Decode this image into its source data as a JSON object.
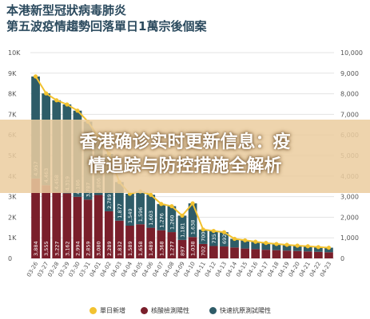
{
  "title_line1": "本港新型冠狀病毒肺炎",
  "title_line2": "第五波疫情趨勢回落單日1萬宗後個案",
  "overlay_line1": "香港确诊实时更新信息：疫",
  "overlay_line2": "情追踪与防控措施全解析",
  "colors": {
    "pcr": "#7a1f2b",
    "rat": "#2e5c68",
    "line": "#f2c230",
    "grid": "#e3e3e3",
    "label": "#ffffff",
    "axis": "#555555"
  },
  "chart_data": {
    "type": "bar",
    "stacked": true,
    "categories": [
      "03-26",
      "03-27",
      "03-28",
      "03-29",
      "03-30",
      "03-31",
      "04-01",
      "04-02",
      "04-03",
      "04-04",
      "04-05",
      "04-06",
      "04-07",
      "04-08",
      "04-09",
      "04-10",
      "04-11",
      "04-12",
      "04-13",
      "04-14",
      "04-15",
      "04-16",
      "04-17",
      "04-18",
      "04-19",
      "04-20",
      "04-21",
      "04-22",
      "04-23"
    ],
    "x_tick_labels": [
      "03-26",
      "03-27",
      "03-28",
      "03-29",
      "03-30",
      "03-31",
      "04-01",
      "04-02",
      "04-03",
      "04-04",
      "04-05",
      "04-06",
      "04-07",
      "04-08",
      "04-09",
      "04-10",
      "04-11",
      "04-12",
      "04-13",
      "04-14",
      "04-15",
      "04-16",
      "04-17",
      "04-18",
      "04-19",
      "04-20",
      "04-21",
      "04-22",
      "04-23"
    ],
    "series": [
      {
        "name": "核酸檢測陽性",
        "values": [
          3884,
          3555,
          3227,
          3162,
          2994,
          2859,
          3080,
          2289,
          1832,
          1589,
          1658,
          1489,
          1368,
          1277,
          897,
          1038,
          702,
          600,
          580,
          530,
          480,
          450,
          420,
          400,
          380,
          360,
          340,
          320,
          300
        ],
        "labels": [
          "3,884",
          "3,555",
          "3,227",
          "3,162",
          "2,994",
          "2,859",
          "3,080",
          "2,289",
          "1,832",
          "1,589",
          "1,658",
          "1,489",
          "1,368",
          "1,277",
          "897",
          "1,038",
          "702",
          "",
          "",
          "",
          "",
          "",
          "",
          "",
          "",
          "",
          "",
          "",
          ""
        ]
      },
      {
        "name": "快速抗原測試陽性",
        "values": [
          4957,
          4463,
          4458,
          4319,
          4186,
          3787,
          2806,
          2789,
          1877,
          1549,
          1596,
          1603,
          1276,
          1260,
          1181,
          1638,
          700,
          735,
          692,
          420,
          400,
          360,
          330,
          300,
          280,
          260,
          250,
          230,
          220
        ],
        "labels": [
          "4,957",
          "4,463",
          "4,458",
          "4,319",
          "4,186",
          "3,787",
          "2,806",
          "2,789",
          "1,877",
          "1,549",
          "1,596",
          "1,603",
          "1,276",
          "1,260",
          "1,181",
          "1,638",
          "700",
          "735",
          "692",
          "",
          "",
          "",
          "",
          "",
          "",
          "",
          "",
          "",
          ""
        ]
      }
    ],
    "line": {
      "name": "單日新增",
      "values": [
        8841,
        8018,
        7685,
        7481,
        7180,
        6646,
        5886,
        5078,
        3709,
        3138,
        3254,
        3092,
        2644,
        2537,
        2078,
        2676,
        1402,
        1335,
        1272,
        950,
        880,
        810,
        750,
        700,
        660,
        620,
        590,
        550,
        520
      ]
    },
    "left_axis": {
      "ylim": [
        0,
        10000
      ],
      "ticks": [
        0,
        1000,
        2000,
        3000,
        4000,
        5000,
        6000,
        7000,
        8000,
        9000,
        10000
      ],
      "tick_labels": [
        "0",
        "1K",
        "2K",
        "3K",
        "4K",
        "5K",
        "6K",
        "7K",
        "8K",
        "9K",
        "10K"
      ]
    },
    "right_axis": {
      "ylim": [
        0,
        10000
      ],
      "ticks": [
        0,
        1000,
        2000,
        3000,
        4000,
        5000,
        6000,
        7000,
        8000,
        9000,
        10000
      ],
      "tick_labels": [
        "0",
        "1,000",
        "2,000",
        "3,000",
        "4,000",
        "5,000",
        "6,000",
        "7,000",
        "8,000",
        "9,000",
        "10,000"
      ]
    },
    "grid": true,
    "legend_position": "bottom",
    "legend": [
      {
        "name": "單日新增",
        "color": "#f2c230"
      },
      {
        "name": "核酸檢測陽性",
        "color": "#7a1f2b"
      },
      {
        "name": "快速抗原測試陽性",
        "color": "#2e5c68"
      }
    ]
  }
}
